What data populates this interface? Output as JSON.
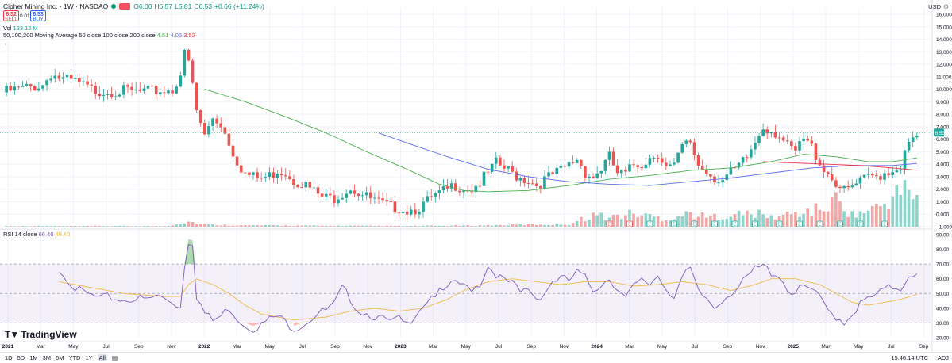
{
  "header": {
    "title": "Cipher Mining Inc. · 1W · NASDAQ",
    "ohlc": {
      "open": "O6.00",
      "high": "H6.57",
      "low": "L5.81",
      "close": "C6.53",
      "change": "+0.66 (+11.24%)"
    },
    "sell_price": "6.52",
    "sell_label": "SELL",
    "spread": "0.01",
    "buy_price": "6.53",
    "buy_label": "BUY",
    "vol_label": "Vol",
    "vol_value": "133.12 M",
    "ma_label": "50,100,200 Moving Average 50 close 100 close 200 close",
    "ma_values": [
      "4.51",
      "4.06",
      "3.52"
    ],
    "rsi_label": "RSI 14 close",
    "rsi_values": [
      "66.46",
      "49.40"
    ],
    "currency": "USD"
  },
  "footer": {
    "ranges": [
      "1D",
      "5D",
      "1M",
      "3M",
      "6M",
      "YTD",
      "1Y",
      "All"
    ],
    "active_range": "All",
    "time": "15:46:14 UTC",
    "adj": "ADJ",
    "brand": "TradingView"
  },
  "colors": {
    "up": "#26a69a",
    "down": "#ef5350",
    "vol_up": "#8fd4cb",
    "vol_down": "#f2a7a6",
    "ma50": "#4caf50",
    "ma100": "#5b6cf0",
    "ma200": "#f23645",
    "rsi": "#7e57c2",
    "rsi_ma": "#f0b94a",
    "rsi_band": "#7e57c2"
  },
  "chart_data": [
    {
      "type": "candlestick",
      "price_axis": [
        -1,
        0,
        1,
        2,
        3,
        4,
        5,
        6,
        7,
        8,
        9,
        10,
        11,
        12,
        13,
        14,
        15,
        16
      ],
      "price_ticks": [
        "−1.000",
        "0.000",
        "1.000",
        "2.000",
        "3.000",
        "4.000",
        "5.000",
        "6.000",
        "7.000",
        "8.000",
        "9.000",
        "10.000",
        "11.000",
        "12.000",
        "13.000",
        "14.000",
        "15.000",
        "16.000"
      ],
      "last_price": "6.53",
      "time_axis": [
        "2021",
        "Mar",
        "May",
        "Jul",
        "Sep",
        "Nov",
        "2022",
        "Mar",
        "May",
        "Jul",
        "Sep",
        "Nov",
        "2023",
        "Mar",
        "May",
        "Jul",
        "Sep",
        "Nov",
        "2024",
        "Mar",
        "May",
        "Jul",
        "Sep",
        "Nov",
        "2025",
        "Mar",
        "May",
        "Jul",
        "Sep"
      ],
      "close_anchors": [
        [
          0,
          10
        ],
        [
          5,
          10.3
        ],
        [
          10,
          10.6
        ],
        [
          12,
          11.5
        ],
        [
          15,
          11
        ],
        [
          18,
          10.8
        ],
        [
          22,
          10.2
        ],
        [
          26,
          10.1
        ],
        [
          30,
          10.1
        ],
        [
          34,
          10
        ],
        [
          38,
          10.1
        ],
        [
          42,
          10.2
        ],
        [
          44,
          11.5
        ],
        [
          45,
          13
        ],
        [
          46,
          12.4
        ],
        [
          47,
          10.5
        ],
        [
          48,
          8.5
        ],
        [
          50,
          6.5
        ],
        [
          52,
          8
        ],
        [
          54,
          7.5
        ],
        [
          56,
          6
        ],
        [
          58,
          4.5
        ],
        [
          60,
          3.5
        ],
        [
          62,
          3.2
        ],
        [
          64,
          3.1
        ],
        [
          66,
          3.3
        ],
        [
          68,
          3.8
        ],
        [
          70,
          3.6
        ],
        [
          72,
          3.0
        ],
        [
          74,
          2.8
        ],
        [
          76,
          2.3
        ],
        [
          78,
          1.8
        ],
        [
          80,
          1.5
        ],
        [
          82,
          1.6
        ],
        [
          84,
          2.0
        ],
        [
          86,
          2.4
        ],
        [
          88,
          2.0
        ],
        [
          90,
          1.6
        ],
        [
          92,
          1.3
        ],
        [
          94,
          1.0
        ],
        [
          96,
          0.8
        ],
        [
          98,
          0.8
        ],
        [
          100,
          0.6
        ],
        [
          102,
          0.7
        ],
        [
          104,
          1.0
        ],
        [
          106,
          1.5
        ],
        [
          108,
          1.8
        ],
        [
          110,
          2.2
        ],
        [
          112,
          2.6
        ],
        [
          114,
          2.4
        ],
        [
          116,
          2.3
        ],
        [
          118,
          2.8
        ],
        [
          120,
          3.5
        ],
        [
          122,
          4.3
        ],
        [
          124,
          3.9
        ],
        [
          126,
          3.5
        ],
        [
          128,
          3.2
        ],
        [
          130,
          3.0
        ],
        [
          132,
          2.6
        ],
        [
          134,
          3.0
        ],
        [
          136,
          3.4
        ],
        [
          138,
          3.7
        ],
        [
          140,
          4.2
        ],
        [
          142,
          4.7
        ],
        [
          144,
          3.6
        ],
        [
          146,
          3.2
        ],
        [
          148,
          3.9
        ],
        [
          150,
          4.8
        ],
        [
          152,
          3.5
        ],
        [
          154,
          3.4
        ],
        [
          156,
          4.2
        ],
        [
          158,
          4.3
        ],
        [
          160,
          4.8
        ],
        [
          162,
          5.2
        ],
        [
          164,
          4.0
        ],
        [
          166,
          4.0
        ],
        [
          168,
          5.6
        ],
        [
          170,
          6.0
        ],
        [
          172,
          4.2
        ],
        [
          174,
          3.7
        ],
        [
          176,
          3.2
        ],
        [
          178,
          3.0
        ],
        [
          180,
          3.5
        ],
        [
          182,
          4.0
        ],
        [
          184,
          4.8
        ],
        [
          186,
          6.0
        ],
        [
          188,
          7.3
        ],
        [
          190,
          7.0
        ],
        [
          192,
          6.6
        ],
        [
          194,
          5.6
        ],
        [
          196,
          5.2
        ],
        [
          198,
          6.2
        ],
        [
          200,
          5.6
        ],
        [
          202,
          4.4
        ],
        [
          204,
          3.5
        ],
        [
          206,
          2.8
        ],
        [
          208,
          2.0
        ],
        [
          210,
          2.4
        ],
        [
          212,
          2.8
        ],
        [
          214,
          3.2
        ],
        [
          216,
          3.3
        ],
        [
          218,
          3.6
        ],
        [
          220,
          3.8
        ],
        [
          222,
          4.2
        ],
        [
          224,
          5.8
        ],
        [
          226,
          6.5
        ]
      ],
      "ma50_anchors": [
        [
          50,
          10.0
        ],
        [
          60,
          9.0
        ],
        [
          70,
          7.8
        ],
        [
          80,
          6.5
        ],
        [
          90,
          5.0
        ],
        [
          100,
          3.6
        ],
        [
          108,
          2.4
        ],
        [
          114,
          1.9
        ],
        [
          120,
          1.8
        ],
        [
          130,
          1.9
        ],
        [
          140,
          2.3
        ],
        [
          150,
          2.8
        ],
        [
          160,
          3.1
        ],
        [
          170,
          3.5
        ],
        [
          180,
          3.7
        ],
        [
          190,
          4.2
        ],
        [
          198,
          4.8
        ],
        [
          206,
          4.6
        ],
        [
          214,
          4.2
        ],
        [
          220,
          4.2
        ],
        [
          226,
          4.51
        ]
      ],
      "ma100_anchors": [
        [
          93,
          6.5
        ],
        [
          100,
          5.7
        ],
        [
          110,
          4.6
        ],
        [
          120,
          3.6
        ],
        [
          130,
          3.0
        ],
        [
          140,
          2.6
        ],
        [
          150,
          2.4
        ],
        [
          160,
          2.3
        ],
        [
          170,
          2.6
        ],
        [
          180,
          2.9
        ],
        [
          190,
          3.3
        ],
        [
          200,
          3.7
        ],
        [
          210,
          3.9
        ],
        [
          220,
          3.9
        ],
        [
          226,
          4.06
        ]
      ],
      "ma200_anchors": [
        [
          188,
          4.2
        ],
        [
          196,
          4.1
        ],
        [
          204,
          4.0
        ],
        [
          212,
          3.9
        ],
        [
          220,
          3.7
        ],
        [
          226,
          3.52
        ]
      ],
      "volume_anchors": [
        [
          0,
          0.05
        ],
        [
          40,
          0.05
        ],
        [
          44,
          0.25
        ],
        [
          46,
          0.4
        ],
        [
          50,
          0.15
        ],
        [
          60,
          0.1
        ],
        [
          100,
          0.05
        ],
        [
          120,
          0.1
        ],
        [
          140,
          0.2
        ],
        [
          146,
          0.9
        ],
        [
          150,
          0.7
        ],
        [
          156,
          1.0
        ],
        [
          160,
          0.8
        ],
        [
          164,
          0.6
        ],
        [
          170,
          1.0
        ],
        [
          174,
          0.7
        ],
        [
          180,
          0.9
        ],
        [
          186,
          1.0
        ],
        [
          190,
          0.7
        ],
        [
          196,
          1.0
        ],
        [
          200,
          1.2
        ],
        [
          204,
          1.5
        ],
        [
          206,
          2.1
        ],
        [
          210,
          0.9
        ],
        [
          214,
          1.2
        ],
        [
          218,
          1.7
        ],
        [
          220,
          2.3
        ],
        [
          222,
          2.6
        ],
        [
          224,
          2.9
        ],
        [
          226,
          2.2
        ]
      ],
      "volume_axis_max": 16,
      "event_markers": [
        "E",
        "E",
        "E",
        "E",
        "E",
        "E",
        "E",
        "E",
        "E",
        "E",
        "E",
        "E",
        "E",
        "E"
      ]
    },
    {
      "type": "line",
      "name": "RSI 14 close",
      "y_ticks": [
        "20.00",
        "30.00",
        "40.00",
        "50.00",
        "60.00",
        "70.00",
        "80.00",
        "90.00"
      ],
      "ylim": [
        20,
        90
      ],
      "bands": [
        30,
        50,
        70
      ],
      "rsi_anchors": [
        [
          14,
          68
        ],
        [
          16,
          62
        ],
        [
          18,
          55
        ],
        [
          20,
          52
        ],
        [
          22,
          50
        ],
        [
          24,
          48
        ],
        [
          26,
          49
        ],
        [
          28,
          48
        ],
        [
          30,
          47
        ],
        [
          32,
          48
        ],
        [
          34,
          48
        ],
        [
          36,
          47
        ],
        [
          38,
          50
        ],
        [
          40,
          48
        ],
        [
          42,
          46
        ],
        [
          44,
          42
        ],
        [
          45,
          70
        ],
        [
          46,
          87
        ],
        [
          47,
          86
        ],
        [
          48,
          50
        ],
        [
          50,
          38
        ],
        [
          52,
          33
        ],
        [
          54,
          36
        ],
        [
          56,
          42
        ],
        [
          58,
          35
        ],
        [
          60,
          30
        ],
        [
          62,
          28
        ],
        [
          64,
          30
        ],
        [
          66,
          34
        ],
        [
          68,
          36
        ],
        [
          70,
          32
        ],
        [
          72,
          28
        ],
        [
          74,
          30
        ],
        [
          76,
          34
        ],
        [
          78,
          38
        ],
        [
          80,
          40
        ],
        [
          82,
          44
        ],
        [
          84,
          55
        ],
        [
          86,
          48
        ],
        [
          88,
          40
        ],
        [
          90,
          38
        ],
        [
          92,
          36
        ],
        [
          94,
          34
        ],
        [
          96,
          32
        ],
        [
          98,
          34
        ],
        [
          100,
          30
        ],
        [
          102,
          38
        ],
        [
          104,
          44
        ],
        [
          106,
          50
        ],
        [
          108,
          52
        ],
        [
          110,
          54
        ],
        [
          112,
          60
        ],
        [
          114,
          56
        ],
        [
          116,
          55
        ],
        [
          118,
          58
        ],
        [
          120,
          70
        ],
        [
          122,
          65
        ],
        [
          124,
          60
        ],
        [
          126,
          58
        ],
        [
          128,
          52
        ],
        [
          130,
          55
        ],
        [
          132,
          48
        ],
        [
          134,
          52
        ],
        [
          136,
          60
        ],
        [
          138,
          62
        ],
        [
          140,
          60
        ],
        [
          142,
          66
        ],
        [
          144,
          62
        ],
        [
          146,
          54
        ],
        [
          148,
          58
        ],
        [
          150,
          62
        ],
        [
          152,
          55
        ],
        [
          154,
          48
        ],
        [
          156,
          56
        ],
        [
          158,
          60
        ],
        [
          160,
          58
        ],
        [
          162,
          64
        ],
        [
          164,
          55
        ],
        [
          166,
          50
        ],
        [
          168,
          62
        ],
        [
          170,
          68
        ],
        [
          172,
          52
        ],
        [
          174,
          48
        ],
        [
          176,
          42
        ],
        [
          178,
          48
        ],
        [
          180,
          52
        ],
        [
          182,
          56
        ],
        [
          184,
          62
        ],
        [
          186,
          68
        ],
        [
          188,
          70
        ],
        [
          190,
          66
        ],
        [
          192,
          64
        ],
        [
          194,
          54
        ],
        [
          196,
          52
        ],
        [
          198,
          56
        ],
        [
          200,
          54
        ],
        [
          202,
          48
        ],
        [
          204,
          40
        ],
        [
          206,
          36
        ],
        [
          208,
          32
        ],
        [
          210,
          38
        ],
        [
          212,
          44
        ],
        [
          214,
          48
        ],
        [
          216,
          50
        ],
        [
          218,
          54
        ],
        [
          220,
          56
        ],
        [
          222,
          55
        ],
        [
          224,
          64
        ],
        [
          226,
          66.46
        ]
      ],
      "rsi_ma_anchors": [
        [
          14,
          58
        ],
        [
          20,
          55
        ],
        [
          30,
          50
        ],
        [
          40,
          48
        ],
        [
          44,
          48
        ],
        [
          46,
          56
        ],
        [
          48,
          60
        ],
        [
          52,
          56
        ],
        [
          56,
          50
        ],
        [
          60,
          42
        ],
        [
          64,
          36
        ],
        [
          68,
          34
        ],
        [
          72,
          32
        ],
        [
          76,
          33
        ],
        [
          80,
          34
        ],
        [
          86,
          38
        ],
        [
          92,
          40
        ],
        [
          98,
          38
        ],
        [
          104,
          40
        ],
        [
          110,
          46
        ],
        [
          114,
          52
        ],
        [
          120,
          58
        ],
        [
          126,
          60
        ],
        [
          132,
          58
        ],
        [
          138,
          56
        ],
        [
          144,
          58
        ],
        [
          150,
          58
        ],
        [
          156,
          55
        ],
        [
          162,
          56
        ],
        [
          168,
          58
        ],
        [
          174,
          56
        ],
        [
          180,
          52
        ],
        [
          186,
          56
        ],
        [
          190,
          60
        ],
        [
          196,
          60
        ],
        [
          202,
          56
        ],
        [
          206,
          50
        ],
        [
          210,
          44
        ],
        [
          214,
          42
        ],
        [
          218,
          44
        ],
        [
          222,
          46
        ],
        [
          226,
          49.4
        ]
      ]
    }
  ]
}
